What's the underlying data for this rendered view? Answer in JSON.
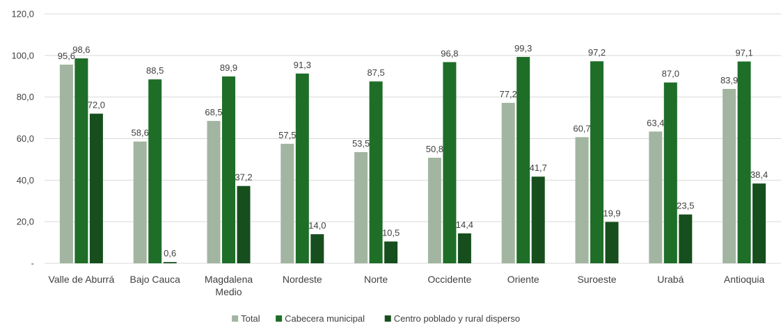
{
  "chart_data": {
    "type": "bar",
    "categories": [
      [
        "Valle de Aburrá"
      ],
      [
        "Bajo Cauca"
      ],
      [
        "Magdalena",
        "Medio"
      ],
      [
        "Nordeste"
      ],
      [
        "Norte"
      ],
      [
        "Occidente"
      ],
      [
        "Oriente"
      ],
      [
        "Suroeste"
      ],
      [
        "Urabá"
      ],
      [
        "Antioquia"
      ]
    ],
    "series": [
      {
        "name": "Total",
        "color": "#a2b5a1",
        "values": [
          95.6,
          58.6,
          68.5,
          57.5,
          53.5,
          50.8,
          77.2,
          60.7,
          63.4,
          83.9
        ],
        "labels": [
          "95,6",
          "58,6",
          "68,5",
          "57,5",
          "53,5",
          "50,8",
          "77,2",
          "60,7",
          "63,4",
          "83,9"
        ]
      },
      {
        "name": "Cabecera municipal",
        "color": "#1e6e28",
        "values": [
          98.6,
          88.5,
          89.9,
          91.3,
          87.5,
          96.8,
          99.3,
          97.2,
          87.0,
          97.1
        ],
        "labels": [
          "98,6",
          "88,5",
          "89,9",
          "91,3",
          "87,5",
          "96,8",
          "99,3",
          "97,2",
          "87,0",
          "97,1"
        ]
      },
      {
        "name": "Centro poblado y rural disperso",
        "color": "#164f1d",
        "values": [
          72.0,
          0.6,
          37.2,
          14.0,
          10.5,
          14.4,
          41.7,
          19.9,
          23.5,
          38.4
        ],
        "labels": [
          "72,0",
          "0,6",
          "37,2",
          "14,0",
          "10,5",
          "14,4",
          "41,7",
          "19,9",
          "23,5",
          "38,4"
        ]
      }
    ],
    "yticks": [
      0,
      20,
      40,
      60,
      80,
      100,
      120
    ],
    "ytick_labels": [
      "-",
      "20,0",
      "40,0",
      "60,0",
      "80,0",
      "100,0",
      "120,0"
    ],
    "ylim": [
      0,
      120
    ],
    "grid": true,
    "legend_position": "bottom"
  }
}
